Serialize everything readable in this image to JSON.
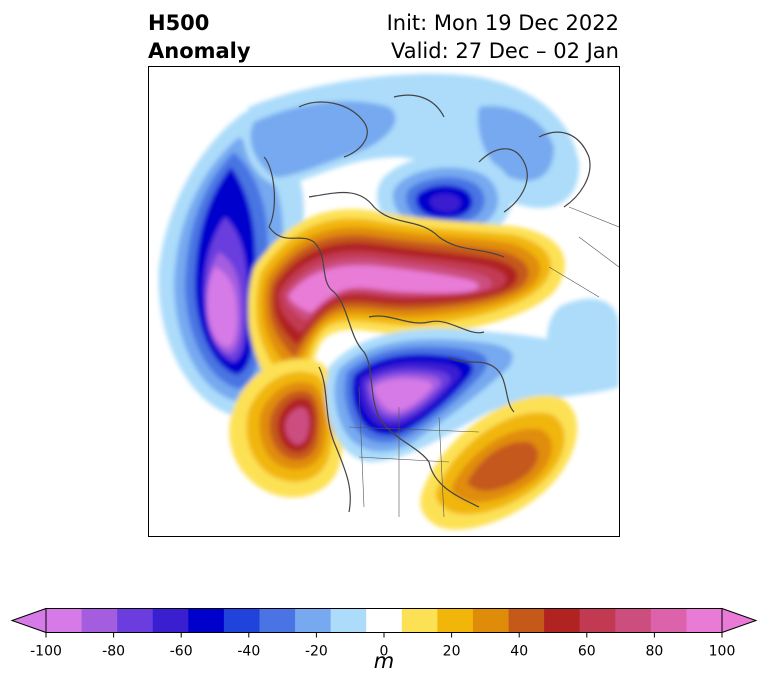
{
  "header": {
    "variable": "H500",
    "subtitle": "Anomaly",
    "init": "Init: Mon 19 Dec 2022",
    "valid": "Valid: 27 Dec – 02 Jan"
  },
  "map": {
    "field": "500 hPa geopotential height anomaly",
    "projection": "polar stereographic (North Pole)",
    "features": [
      "ridge-western-north-america",
      "ridge-north-atlantic-europe",
      "trough-central-canada-us",
      "trough-north-pacific",
      "trough-greenland-sea",
      "ridge-western-atlantic"
    ]
  },
  "colorbar": {
    "ticks": [
      "-100",
      "-80",
      "-60",
      "-40",
      "-20",
      "0",
      "20",
      "40",
      "60",
      "80",
      "100"
    ],
    "unit": "m",
    "levels": [
      -100,
      -90,
      -80,
      -70,
      -60,
      -50,
      -40,
      -30,
      -20,
      -10,
      10,
      20,
      30,
      40,
      50,
      60,
      70,
      80,
      90,
      100
    ],
    "colors": [
      "#d57ae7",
      "#a55de0",
      "#6b3dde",
      "#3a1fd1",
      "#0000cd",
      "#2043dc",
      "#4a74e3",
      "#76a9f0",
      "#acdcfa",
      "#ffffff",
      "#fde154",
      "#f1b609",
      "#e08c0b",
      "#c5591a",
      "#b02321",
      "#c23a52",
      "#cc4e7f",
      "#dd62ac",
      "#e97bd7"
    ],
    "extend_low_color": "#d57ae7",
    "extend_high_color": "#e97bd7"
  }
}
